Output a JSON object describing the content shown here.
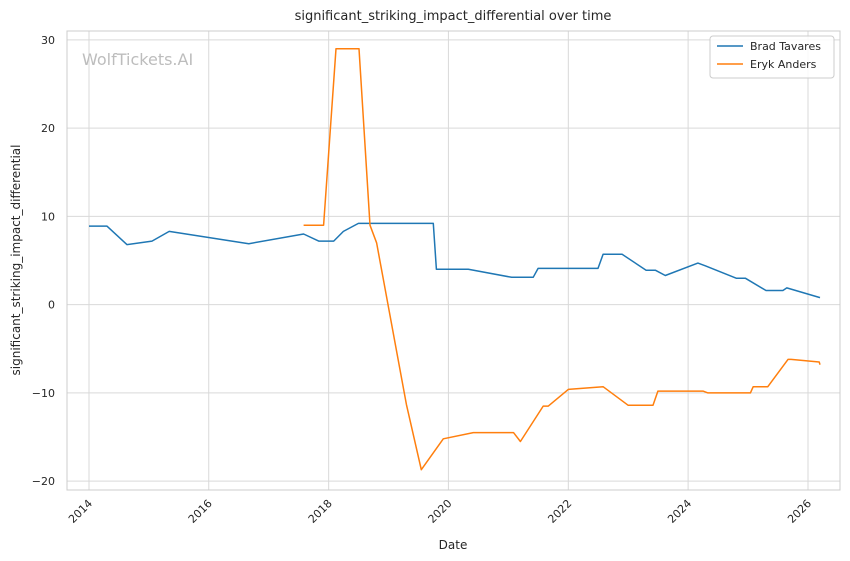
{
  "watermark": "WolfTickets.AI",
  "chart_data": {
    "type": "line",
    "title": "significant_striking_impact_differential over time",
    "xlabel": "Date",
    "ylabel": "significant_striking_impact_differential",
    "xlim": [
      "2013-08-20",
      "2026-07-15"
    ],
    "ylim": [
      -21.0,
      31.0
    ],
    "xticks": [
      "2014",
      "2016",
      "2018",
      "2020",
      "2022",
      "2024",
      "2026"
    ],
    "yticks": [
      -20,
      -10,
      0,
      10,
      20,
      30
    ],
    "ytick_labels": [
      "−20",
      "−10",
      "0",
      "10",
      "20",
      "30"
    ],
    "grid": true,
    "legend": "top-right",
    "series": [
      {
        "name": "Brad Tavares",
        "color": "#1f77b4",
        "x": [
          "2014-01-01",
          "2014-04-20",
          "2014-08-20",
          "2015-01-20",
          "2015-05-05",
          "2016-09-01",
          "2017-08-01",
          "2017-11-01",
          "2018-02-01",
          "2018-04-01",
          "2018-07-01",
          "2019-10-01",
          "2019-10-20",
          "2020-05-01",
          "2021-01-20",
          "2021-06-01",
          "2021-07-01",
          "2022-07-01",
          "2022-08-01",
          "2022-11-25",
          "2023-04-20",
          "2023-06-15",
          "2023-08-15",
          "2024-03-01",
          "2024-04-15",
          "2024-10-20",
          "2024-12-15",
          "2025-04-20",
          "2025-08-01",
          "2025-08-25",
          "2026-03-15"
        ],
        "y": [
          8.9,
          8.9,
          6.8,
          7.2,
          8.3,
          6.9,
          8.0,
          7.2,
          7.2,
          8.3,
          9.2,
          9.2,
          4.0,
          4.0,
          3.1,
          3.1,
          4.1,
          4.1,
          5.7,
          5.7,
          3.9,
          3.9,
          3.3,
          4.7,
          4.4,
          3.0,
          3.0,
          1.6,
          1.6,
          1.9,
          0.8
        ]
      },
      {
        "name": "Eryk Anders",
        "color": "#ff7f0e",
        "x": [
          "2017-08-01",
          "2017-12-01",
          "2018-02-15",
          "2018-07-05",
          "2018-09-10",
          "2018-10-20",
          "2019-04-20",
          "2019-07-20",
          "2019-12-01",
          "2020-06-01",
          "2021-02-01",
          "2021-03-15",
          "2021-08-01",
          "2021-09-01",
          "2022-01-01",
          "2022-08-01",
          "2023-01-01",
          "2023-06-01",
          "2023-07-01",
          "2024-04-01",
          "2024-05-01",
          "2025-01-15",
          "2025-02-01",
          "2025-05-01",
          "2025-09-01",
          "2025-09-20",
          "2026-03-10",
          "2026-03-15"
        ],
        "y": [
          9.0,
          9.0,
          29.0,
          29.0,
          9.0,
          7.0,
          -11.3,
          -18.7,
          -15.2,
          -14.5,
          -14.5,
          -15.5,
          -11.5,
          -11.5,
          -9.6,
          -9.3,
          -11.4,
          -11.4,
          -9.8,
          -9.8,
          -10.0,
          -10.0,
          -9.3,
          -9.3,
          -6.2,
          -6.2,
          -6.5,
          -6.8
        ]
      }
    ]
  }
}
